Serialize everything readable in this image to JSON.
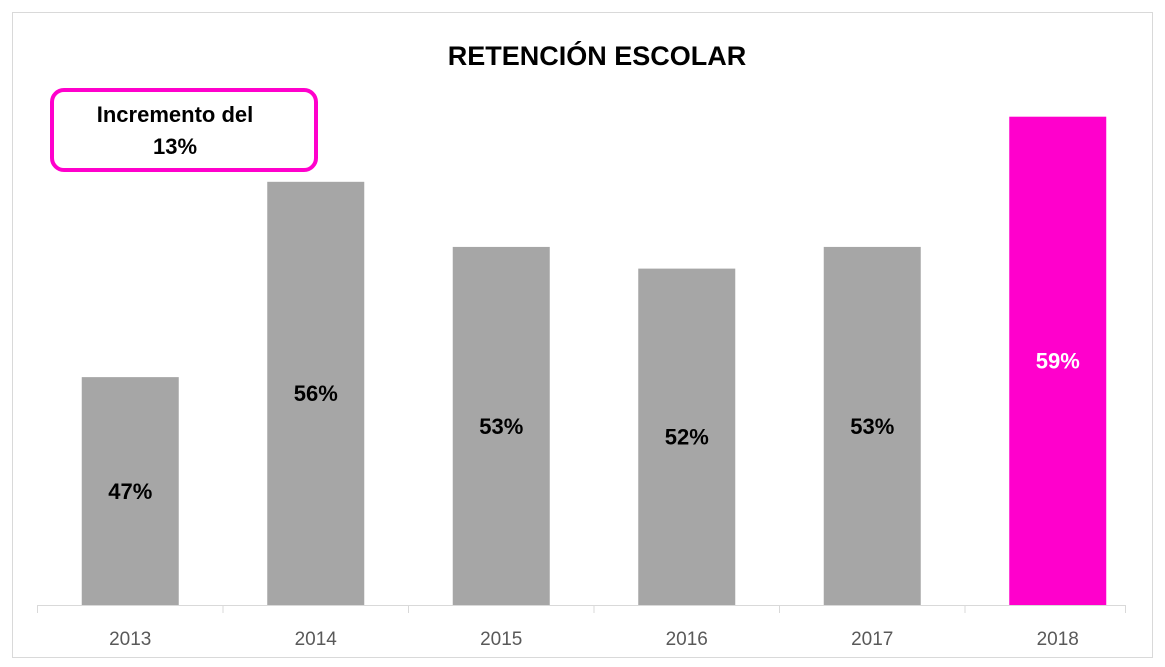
{
  "chart_data": {
    "type": "bar",
    "title": "RETENCIÓN ESCOLAR",
    "annotation": "Incremento del 13%",
    "categories": [
      "2013",
      "2014",
      "2015",
      "2016",
      "2017",
      "2018"
    ],
    "values": [
      47,
      56,
      53,
      52,
      53,
      59
    ],
    "value_labels": [
      "47%",
      "56%",
      "53%",
      "52%",
      "53%",
      "59%"
    ],
    "colors": [
      "#a6a6a6",
      "#a6a6a6",
      "#a6a6a6",
      "#a6a6a6",
      "#a6a6a6",
      "#ff00cc"
    ],
    "label_colors": [
      "#000000",
      "#000000",
      "#000000",
      "#000000",
      "#000000",
      "#ffffff"
    ],
    "ylim": [
      36.5,
      60
    ]
  }
}
